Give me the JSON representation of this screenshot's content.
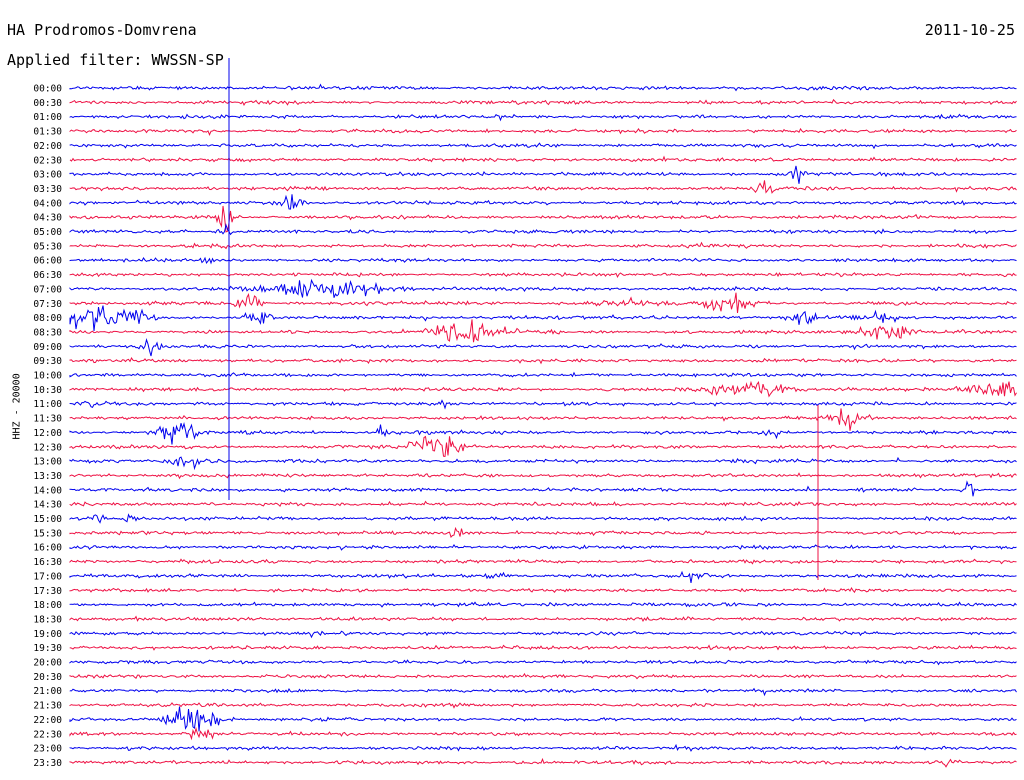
{
  "header": {
    "station": "HA Prodromos-Domvrena",
    "date": "2011-10-25",
    "filter": "Applied filter: WWSSN-SP"
  },
  "chart_data": {
    "type": "line",
    "title": "HA Prodromos-Domvrena",
    "ylabel": "HHZ - 20000",
    "colors": [
      "#0000ee",
      "#ee1144"
    ],
    "grid": false,
    "legend": "none",
    "row_labels": [
      "00:00",
      "00:30",
      "01:00",
      "01:30",
      "02:00",
      "02:30",
      "03:00",
      "03:30",
      "04:00",
      "04:30",
      "05:00",
      "05:30",
      "06:00",
      "06:30",
      "07:00",
      "07:30",
      "08:00",
      "08:30",
      "09:00",
      "09:30",
      "10:00",
      "10:30",
      "11:00",
      "11:30",
      "12:00",
      "12:30",
      "13:00",
      "13:30",
      "14:00",
      "14:30",
      "15:00",
      "15:30",
      "16:00",
      "16:30",
      "17:00",
      "17:30",
      "18:00",
      "18:30",
      "19:00",
      "19:30",
      "20:00",
      "20:30",
      "21:00",
      "21:30",
      "22:00",
      "22:30",
      "23:00",
      "23:30"
    ]
  }
}
